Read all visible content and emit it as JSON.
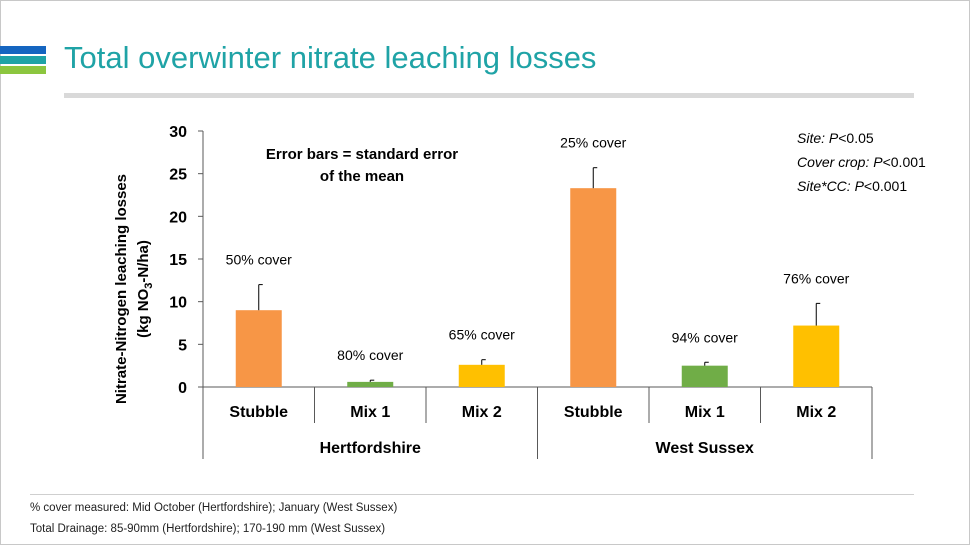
{
  "slide": {
    "title": "Total overwinter nitrate leaching losses",
    "footnotes": [
      "% cover measured: Mid October (Hertfordshire); January (West Sussex)",
      "Total Drainage: 85-90mm (Hertfordshire); 170-190 mm (West Sussex)"
    ],
    "logo_colors": [
      "#1565c0",
      "#1fa3a6",
      "#8cc63f"
    ]
  },
  "chart_data": {
    "type": "bar",
    "ylabel_main": "Nitrate-Nitrogen leaching losses",
    "ylabel_units": {
      "prefix": "(kg NO",
      "sub": "3",
      "suffix": "-N/ha)"
    },
    "ylim": [
      0,
      30
    ],
    "yticks": [
      "0",
      "5",
      "10",
      "15",
      "20",
      "25",
      "30"
    ],
    "groups": [
      {
        "name": "Hertfordshire",
        "categories": [
          "Stubble",
          "Mix 1",
          "Mix 2"
        ]
      },
      {
        "name": "West Sussex",
        "categories": [
          "Stubble",
          "Mix 1",
          "Mix 2"
        ]
      }
    ],
    "bars": [
      {
        "category": "Stubble",
        "group": "Hertfordshire",
        "value": 9.0,
        "error": 3.0,
        "color": "#f79646",
        "label": "50% cover"
      },
      {
        "category": "Mix 1",
        "group": "Hertfordshire",
        "value": 0.6,
        "error": 0.2,
        "color": "#70ad47",
        "label": "80% cover"
      },
      {
        "category": "Mix 2",
        "group": "Hertfordshire",
        "value": 2.6,
        "error": 0.6,
        "color": "#ffc000",
        "label": "65% cover"
      },
      {
        "category": "Stubble",
        "group": "West Sussex",
        "value": 23.3,
        "error": 2.4,
        "color": "#f79646",
        "label": "25% cover"
      },
      {
        "category": "Mix 1",
        "group": "West Sussex",
        "value": 2.5,
        "error": 0.4,
        "color": "#70ad47",
        "label": "94% cover"
      },
      {
        "category": "Mix 2",
        "group": "West Sussex",
        "value": 7.2,
        "error": 2.6,
        "color": "#ffc000",
        "label": "76% cover"
      }
    ],
    "annotation_error": [
      "Error bars = standard error",
      "of the mean"
    ],
    "stats": [
      {
        "term": "Site:",
        "value": " P<0.05"
      },
      {
        "term": "Cover crop:",
        "value": " P<0.001"
      },
      {
        "term": "Site*CC:",
        "value": " P<0.001"
      }
    ],
    "legend": "none",
    "grid": false
  }
}
